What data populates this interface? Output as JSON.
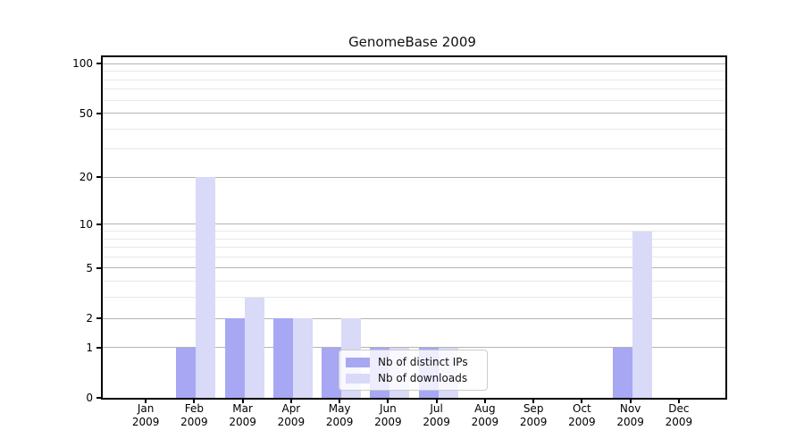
{
  "figure": {
    "title": "GenomeBase 2009"
  },
  "legend": {
    "items": [
      {
        "label": "Nb of distinct IPs",
        "series": "ips"
      },
      {
        "label": "Nb of downloads",
        "series": "downloads"
      }
    ]
  },
  "colors": {
    "ips_bar": "#a7a7f3",
    "downloads_bar": "#d9d9f8",
    "grid_major": "#b4b4b4",
    "grid_minor": "#e8e8e8",
    "spine": "#000000",
    "legend_border": "#cccccc",
    "legend_bg": "rgba(255,255,255,0.8)"
  },
  "axes": {
    "y_major_ticks": [
      0,
      1,
      2,
      5,
      10,
      20,
      50,
      100
    ],
    "y_minor_gridlines": [
      3,
      4,
      6,
      7,
      8,
      9,
      30,
      40,
      60,
      70,
      80,
      90
    ],
    "x_year_label": "2009",
    "x_months": [
      "Jan",
      "Feb",
      "Mar",
      "Apr",
      "May",
      "Jun",
      "Jul",
      "Aug",
      "Sep",
      "Oct",
      "Nov",
      "Dec"
    ]
  },
  "chart_data": {
    "type": "bar",
    "title": "GenomeBase 2009",
    "categories": [
      "Jan 2009",
      "Feb 2009",
      "Mar 2009",
      "Apr 2009",
      "May 2009",
      "Jun 2009",
      "Jul 2009",
      "Aug 2009",
      "Sep 2009",
      "Oct 2009",
      "Nov 2009",
      "Dec 2009"
    ],
    "series": [
      {
        "name": "Nb of distinct IPs",
        "key": "ips",
        "values": [
          0,
          1,
          2,
          2,
          1,
          1,
          1,
          0,
          0,
          0,
          1,
          0
        ]
      },
      {
        "name": "Nb of downloads",
        "key": "downloads",
        "values": [
          0,
          20,
          3,
          2,
          2,
          1,
          1,
          0,
          0,
          0,
          9,
          0
        ]
      }
    ],
    "xlabel": "",
    "ylabel": "",
    "yscale": "log1p",
    "ylim": [
      0,
      110
    ],
    "y_ticks": [
      0,
      1,
      2,
      5,
      10,
      20,
      50,
      100
    ],
    "grid": "horizontal-major-and-minor",
    "legend_position": "lower center"
  }
}
